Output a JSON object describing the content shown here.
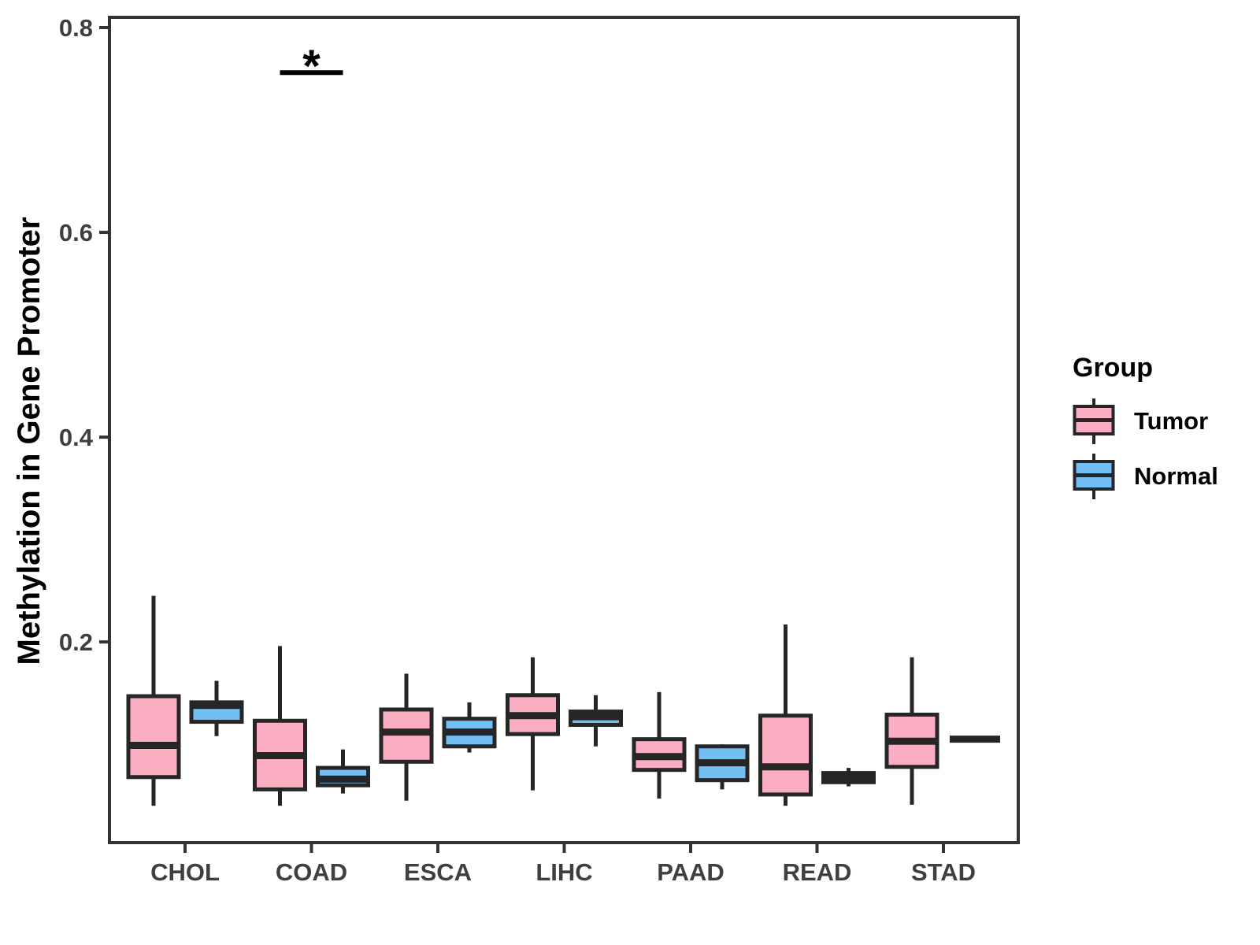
{
  "chart_data": {
    "type": "boxplot",
    "title": "",
    "xlabel": "",
    "ylabel": "Methylation in Gene Promoter",
    "categories": [
      "CHOL",
      "COAD",
      "ESCA",
      "LIHC",
      "PAAD",
      "READ",
      "STAD"
    ],
    "ytick_labels": [
      "0.2",
      "0.4",
      "0.6",
      "0.8"
    ],
    "ytick_values": [
      0.2,
      0.4,
      0.6,
      0.8
    ],
    "ylim": [
      0.004,
      0.81
    ],
    "grid": "off",
    "legend_position": "right",
    "series": [
      {
        "name": "Tumor",
        "fill": "#FBAEC1",
        "boxes": [
          {
            "category": "CHOL",
            "whisker_low": 0.04,
            "q1": 0.068,
            "median": 0.099,
            "q3": 0.147,
            "whisker_high": 0.245
          },
          {
            "category": "COAD",
            "whisker_low": 0.04,
            "q1": 0.056,
            "median": 0.089,
            "q3": 0.123,
            "whisker_high": 0.196
          },
          {
            "category": "ESCA",
            "whisker_low": 0.045,
            "q1": 0.083,
            "median": 0.112,
            "q3": 0.134,
            "whisker_high": 0.169
          },
          {
            "category": "LIHC",
            "whisker_low": 0.055,
            "q1": 0.11,
            "median": 0.128,
            "q3": 0.148,
            "whisker_high": 0.185
          },
          {
            "category": "PAAD",
            "whisker_low": 0.047,
            "q1": 0.075,
            "median": 0.088,
            "q3": 0.105,
            "whisker_high": 0.151
          },
          {
            "category": "READ",
            "whisker_low": 0.04,
            "q1": 0.051,
            "median": 0.078,
            "q3": 0.128,
            "whisker_high": 0.217
          },
          {
            "category": "STAD",
            "whisker_low": 0.041,
            "q1": 0.078,
            "median": 0.103,
            "q3": 0.129,
            "whisker_high": 0.185
          }
        ]
      },
      {
        "name": "Normal",
        "fill": "#73BFF4",
        "boxes": [
          {
            "category": "CHOL",
            "whisker_low": 0.108,
            "q1": 0.122,
            "median": 0.138,
            "q3": 0.141,
            "whisker_high": 0.162
          },
          {
            "category": "COAD",
            "whisker_low": 0.052,
            "q1": 0.06,
            "median": 0.066,
            "q3": 0.077,
            "whisker_high": 0.095
          },
          {
            "category": "ESCA",
            "whisker_low": 0.092,
            "q1": 0.098,
            "median": 0.112,
            "q3": 0.125,
            "whisker_high": 0.141
          },
          {
            "category": "LIHC",
            "whisker_low": 0.098,
            "q1": 0.119,
            "median": 0.127,
            "q3": 0.132,
            "whisker_high": 0.148
          },
          {
            "category": "PAAD",
            "whisker_low": 0.056,
            "q1": 0.065,
            "median": 0.082,
            "q3": 0.098,
            "whisker_high": 0.1
          },
          {
            "category": "READ",
            "whisker_low": 0.059,
            "q1": 0.063,
            "median": 0.068,
            "q3": 0.072,
            "whisker_high": 0.077
          },
          {
            "category": "STAD",
            "whisker_low": 0.105,
            "q1": 0.105,
            "median": 0.105,
            "q3": 0.105,
            "whisker_high": 0.105
          }
        ]
      }
    ],
    "annotations": [
      {
        "type": "significance",
        "category": "COAD",
        "label": "*",
        "bar_value": 0.756,
        "connects": [
          "Tumor",
          "Normal"
        ]
      }
    ]
  },
  "legend": {
    "title": "Group",
    "items": [
      {
        "label": "Tumor"
      },
      {
        "label": "Normal"
      }
    ]
  },
  "colors": {
    "tumor": "#FBAEC1",
    "normal": "#73BFF4",
    "stroke": "#262626",
    "axis": "#333333",
    "axis_text": "#3F3F3F",
    "annotation": "#000000",
    "background": "#FFFFFF"
  }
}
